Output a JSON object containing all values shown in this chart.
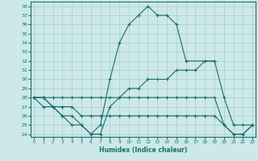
{
  "xlabel": "Humidex (Indice chaleur)",
  "bg_color": "#cce8e8",
  "grid_color": "#aacccc",
  "line_color": "#1a6e6e",
  "xlim": [
    0,
    23
  ],
  "ylim": [
    24,
    38
  ],
  "yticks": [
    24,
    25,
    26,
    27,
    28,
    29,
    30,
    31,
    32,
    33,
    34,
    35,
    36,
    37,
    38
  ],
  "xticks": [
    0,
    1,
    2,
    3,
    4,
    5,
    6,
    7,
    8,
    9,
    10,
    11,
    12,
    13,
    14,
    15,
    16,
    17,
    18,
    19,
    20,
    21,
    22,
    23
  ],
  "series_x": [
    [
      0,
      1,
      2,
      3,
      4,
      5,
      6,
      7,
      8,
      9,
      10,
      11,
      12,
      13,
      14,
      15,
      16,
      19
    ],
    [
      0,
      1,
      2,
      3,
      4,
      5,
      6,
      7,
      8,
      9,
      10,
      11,
      12,
      13,
      14,
      15,
      16,
      17,
      18,
      19,
      20,
      21,
      22,
      23
    ],
    [
      0,
      1,
      2,
      3,
      4,
      5,
      6,
      7,
      8,
      9,
      10,
      11,
      12,
      13,
      14,
      15,
      16,
      17,
      18,
      19,
      20,
      21,
      22,
      23
    ],
    [
      0,
      1,
      2,
      3,
      4,
      5,
      6,
      7,
      8,
      9,
      10,
      11,
      12,
      13,
      14,
      15,
      16,
      17,
      18,
      19,
      20,
      21,
      22,
      23
    ]
  ],
  "series_y": [
    [
      28,
      28,
      27,
      26,
      25,
      25,
      24,
      25,
      30,
      34,
      36,
      37,
      38,
      37,
      37,
      36,
      32,
      32
    ],
    [
      28,
      28,
      28,
      28,
      28,
      28,
      28,
      28,
      28,
      28,
      29,
      29,
      30,
      30,
      30,
      31,
      31,
      31,
      32,
      32,
      28,
      25,
      25,
      25
    ],
    [
      28,
      27,
      27,
      26,
      26,
      25,
      24,
      24,
      27,
      28,
      28,
      28,
      28,
      28,
      28,
      28,
      28,
      28,
      28,
      28,
      25,
      24,
      24,
      25
    ],
    [
      28,
      28,
      27,
      27,
      27,
      26,
      26,
      26,
      26,
      26,
      26,
      26,
      26,
      26,
      26,
      26,
      26,
      26,
      26,
      26,
      25,
      24,
      24,
      25
    ]
  ]
}
